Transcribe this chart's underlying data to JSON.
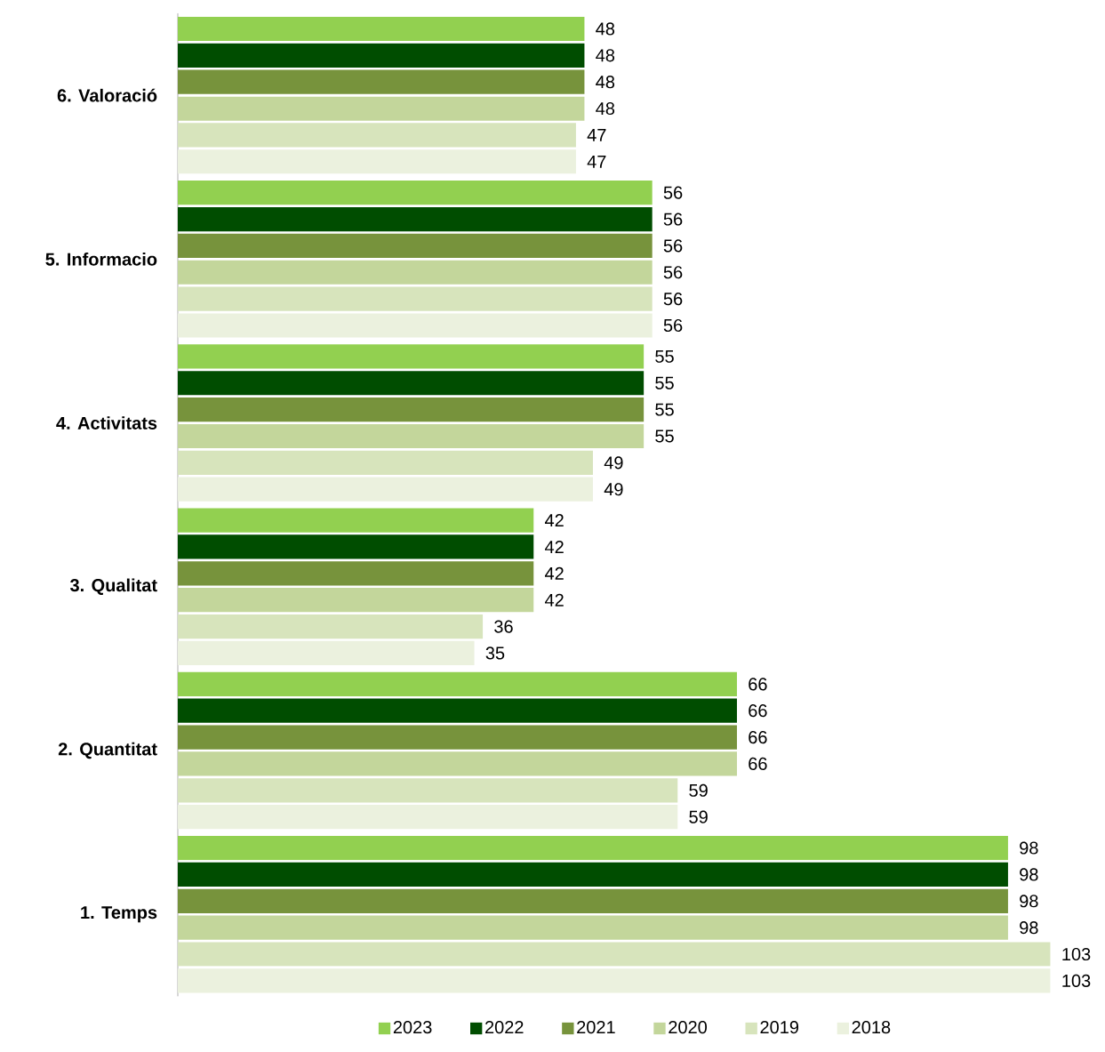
{
  "chart_data": {
    "type": "bar",
    "orientation": "horizontal",
    "data_labels": true,
    "legend": "bottom",
    "categories": [
      "6. Valoració",
      "5. Informacio",
      "4. Activitats",
      "3. Qualitat",
      "2. Quantitat",
      "1. Temps"
    ],
    "series": [
      {
        "name": "2023",
        "color": "#92d050",
        "values": [
          48,
          56,
          55,
          42,
          66,
          98
        ]
      },
      {
        "name": "2022",
        "color": "#004d00",
        "values": [
          48,
          56,
          55,
          42,
          66,
          98
        ]
      },
      {
        "name": "2021",
        "color": "#77933c",
        "values": [
          48,
          56,
          55,
          42,
          66,
          98
        ]
      },
      {
        "name": "2020",
        "color": "#c3d69b",
        "values": [
          48,
          56,
          55,
          42,
          66,
          98
        ]
      },
      {
        "name": "2019",
        "color": "#d7e4bc",
        "values": [
          47,
          56,
          49,
          36,
          59,
          103
        ]
      },
      {
        "name": "2018",
        "color": "#ebf1de",
        "values": [
          47,
          56,
          49,
          35,
          59,
          103
        ]
      }
    ]
  }
}
